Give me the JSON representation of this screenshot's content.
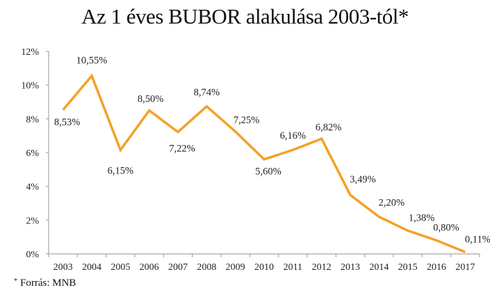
{
  "header": {
    "title": "Az 1 éves BUBOR alakulása 2003-tól*"
  },
  "footnote": {
    "marker": "*",
    "text": "Forrás: MNB"
  },
  "style": {
    "line_color": "#F4A124",
    "axis_color": "#A6A6A6"
  },
  "chart_data": {
    "type": "line",
    "title": "Az 1 éves BUBOR alakulása 2003-tól*",
    "xlabel": "",
    "ylabel": "",
    "categories": [
      "2003",
      "2004",
      "2005",
      "2006",
      "2007",
      "2008",
      "2009",
      "2010",
      "2011",
      "2012",
      "2013",
      "2014",
      "2015",
      "2016",
      "2017"
    ],
    "series": [
      {
        "name": "1 éves BUBOR",
        "values": [
          8.53,
          10.55,
          6.15,
          8.5,
          7.22,
          8.74,
          7.25,
          5.6,
          6.16,
          6.82,
          3.49,
          2.2,
          1.38,
          0.8,
          0.11
        ],
        "labels": [
          "8,53%",
          "10,55%",
          "6,15%",
          "8,50%",
          "7,22%",
          "8,74%",
          "7,25%",
          "5,60%",
          "6,16%",
          "6,82%",
          "3,49%",
          "2,20%",
          "1,38%",
          "0,80%",
          "0,11%"
        ]
      }
    ],
    "ylim": [
      0,
      12
    ],
    "yticks": [
      "0%",
      "2%",
      "4%",
      "6%",
      "8%",
      "10%",
      "12%"
    ],
    "grid": false,
    "legend": "none",
    "source": "Forrás: MNB"
  }
}
